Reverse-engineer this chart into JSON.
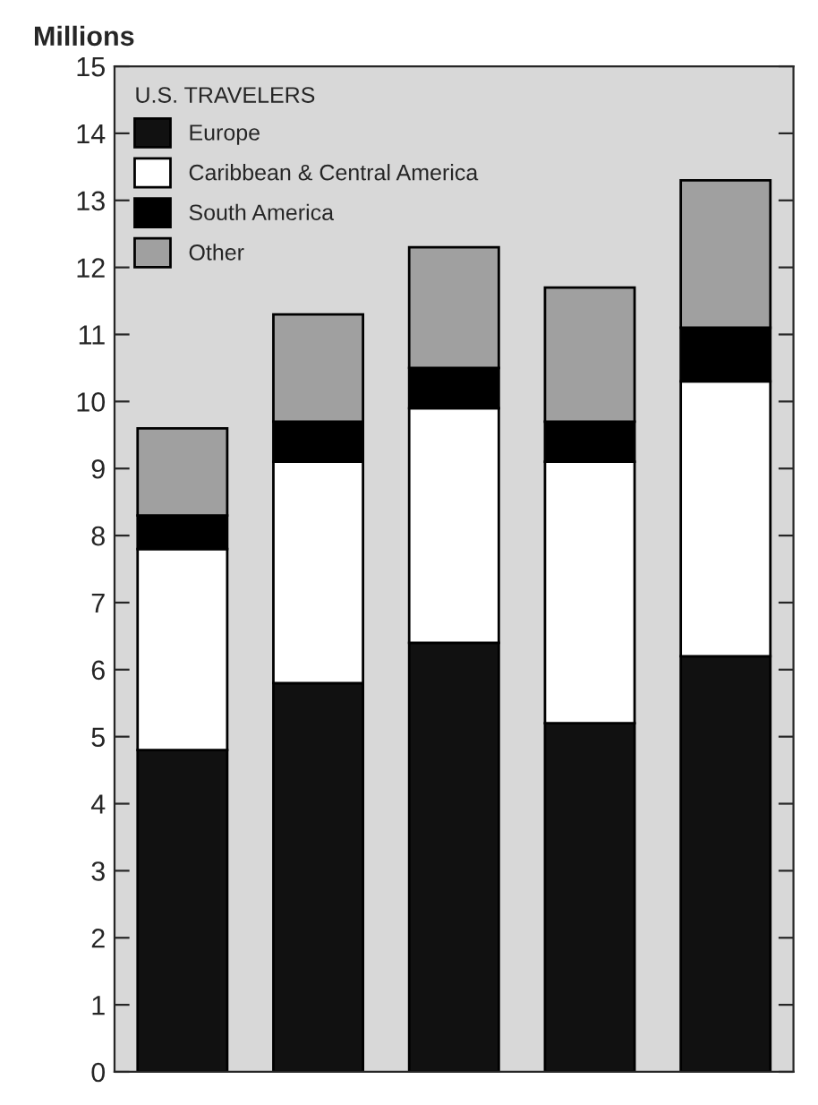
{
  "chart_data": {
    "type": "bar",
    "stacked": true,
    "ylabel": "Millions",
    "legend_title": "U.S. TRAVELERS",
    "legend": "top left",
    "categories": [
      null,
      null,
      null,
      null,
      null
    ],
    "series": [
      {
        "name": "Europe",
        "color": "#111111",
        "values": [
          4.8,
          5.8,
          6.4,
          5.2,
          6.2
        ]
      },
      {
        "name": "Caribbean & Central America",
        "color": "#ffffff",
        "values": [
          3.0,
          3.3,
          3.5,
          3.9,
          4.1
        ]
      },
      {
        "name": "South America",
        "color": "#000000",
        "values": [
          0.5,
          0.6,
          0.6,
          0.6,
          0.8
        ]
      },
      {
        "name": "Other",
        "color": "#a0a0a0",
        "values": [
          1.3,
          1.6,
          1.8,
          2.0,
          2.2
        ]
      }
    ],
    "ylim": [
      0,
      15
    ],
    "yticks": [
      0,
      1,
      2,
      3,
      4,
      5,
      6,
      7,
      8,
      9,
      10,
      11,
      12,
      13,
      14,
      15
    ],
    "tick_labels": "y",
    "grid": false
  }
}
